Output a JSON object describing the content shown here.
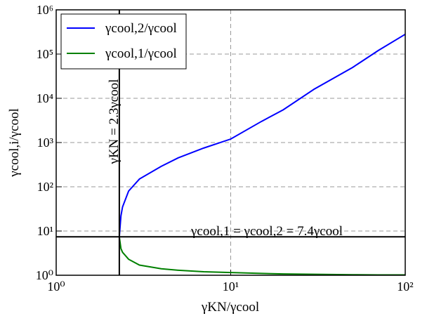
{
  "chart_data": {
    "type": "line",
    "xlabel": "γKN/γcool",
    "ylabel": "γcool,i/γcool",
    "x": [
      2.3,
      2.35,
      2.4,
      2.6,
      3,
      4,
      5,
      7,
      10,
      15,
      20,
      30,
      50,
      70,
      100
    ],
    "series": [
      {
        "name": "γcool,2/γcool",
        "color": "#0000ff",
        "values": [
          7.4,
          22,
          35,
          80,
          150,
          290,
          450,
          750,
          1200,
          3000,
          5500,
          16000,
          50000,
          120000,
          280000
        ]
      },
      {
        "name": "γcool,1/γcool",
        "color": "#008000",
        "values": [
          7.4,
          4,
          3.3,
          2.3,
          1.7,
          1.4,
          1.3,
          1.2,
          1.15,
          1.1,
          1.07,
          1.05,
          1.03,
          1.02,
          1.02
        ]
      }
    ],
    "xlim": [
      1,
      100
    ],
    "ylim": [
      1,
      1000000
    ],
    "log_x": true,
    "log_y": true,
    "grid": true,
    "legend": "upper left",
    "xticks": [
      {
        "value": 1,
        "label": "10⁰"
      },
      {
        "value": 10,
        "label": "10¹"
      },
      {
        "value": 100,
        "label": "10²"
      }
    ],
    "yticks": [
      {
        "value": 1,
        "label": "10⁰"
      },
      {
        "value": 10,
        "label": "10¹"
      },
      {
        "value": 100,
        "label": "10²"
      },
      {
        "value": 1000,
        "label": "10³"
      },
      {
        "value": 10000,
        "label": "10⁴"
      },
      {
        "value": 100000,
        "label": "10⁵"
      },
      {
        "value": 1000000,
        "label": "10⁶"
      }
    ],
    "reference_lines": {
      "x": 2.3,
      "y": 7.4
    },
    "annotations": [
      "γKN = 2.3γcool",
      "γcool,1 = γcool,2 = 7.4γcool"
    ]
  }
}
